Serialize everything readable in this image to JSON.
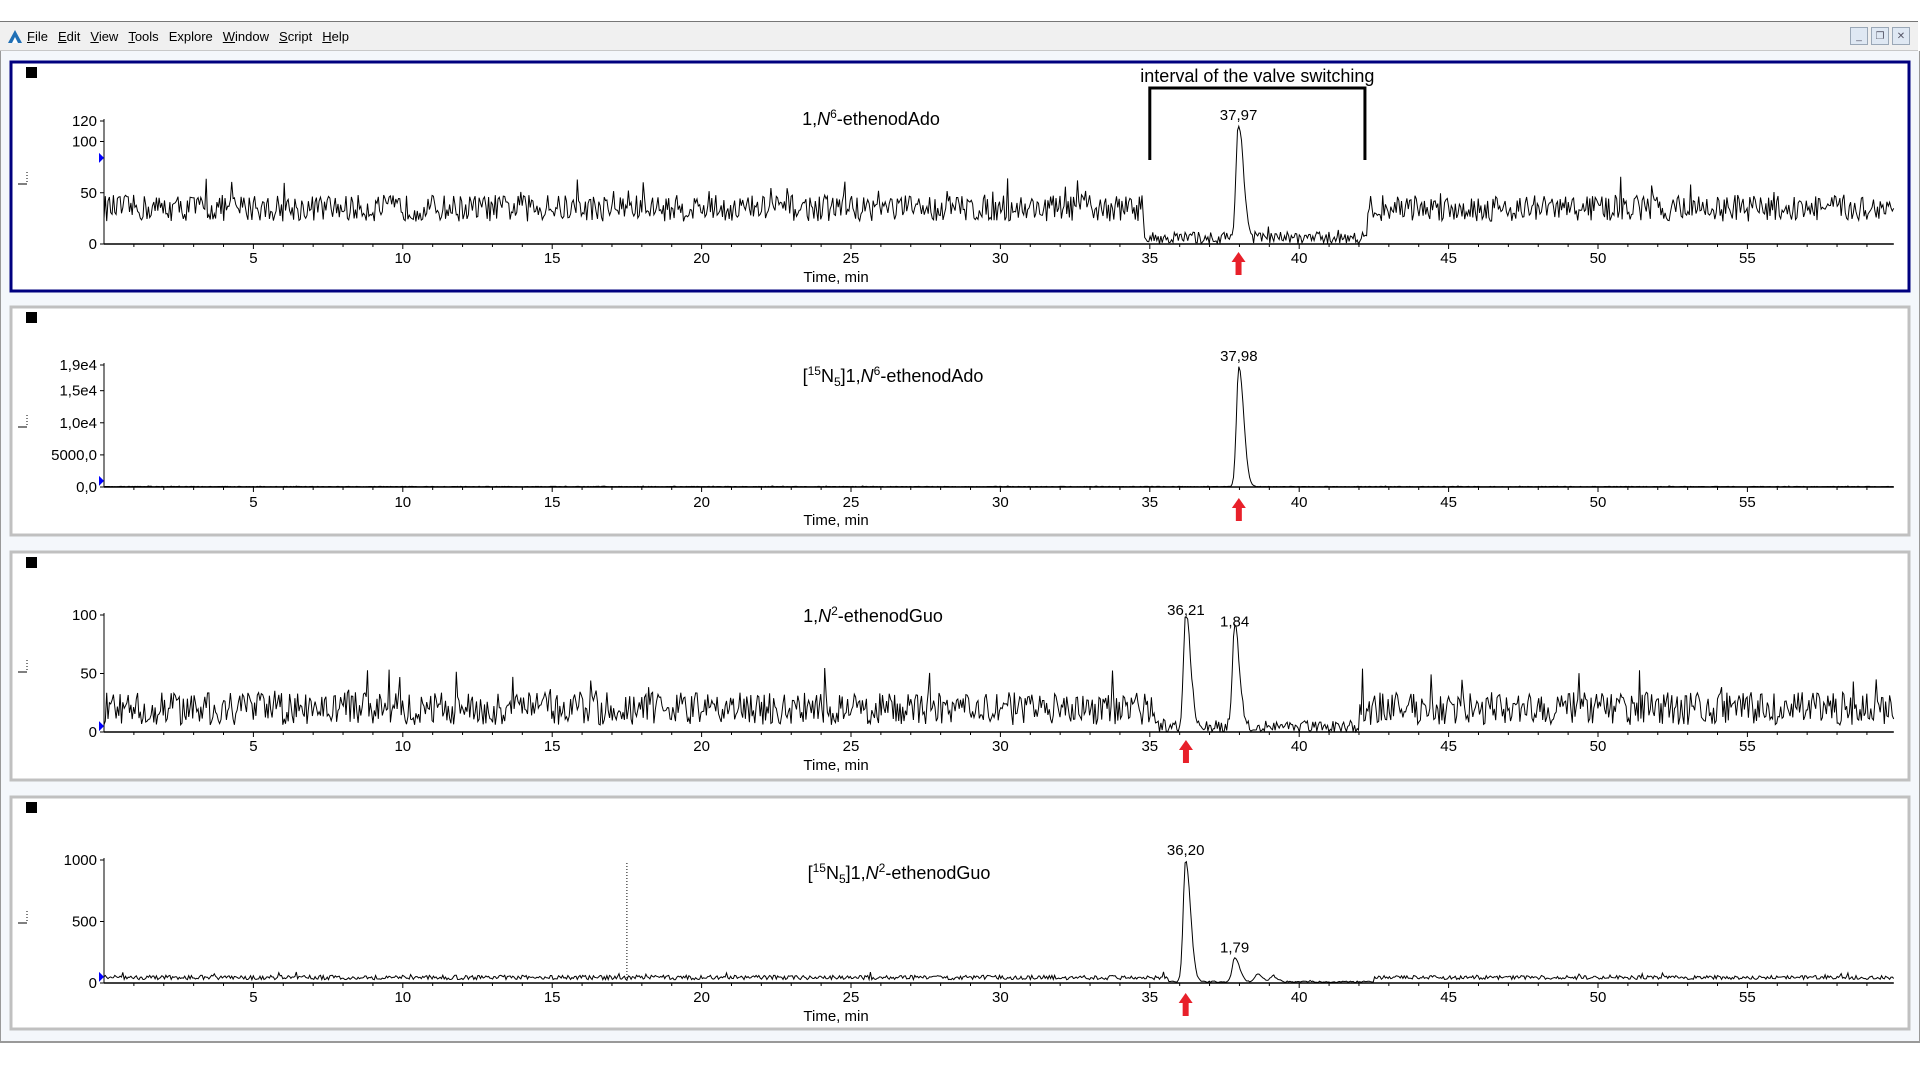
{
  "menu": {
    "items": [
      {
        "label": "File",
        "ul": "F"
      },
      {
        "label": "Edit",
        "ul": "E"
      },
      {
        "label": "View",
        "ul": "V"
      },
      {
        "label": "Tools",
        "ul": "T"
      },
      {
        "label": "Explore",
        "ul": ""
      },
      {
        "label": "Window",
        "ul": "W"
      },
      {
        "label": "Script",
        "ul": "S"
      },
      {
        "label": "Help",
        "ul": "H"
      }
    ],
    "window_buttons": [
      "minimize",
      "restore",
      "close"
    ]
  },
  "colors": {
    "trace": "#000000",
    "selected_border": "#00007f",
    "panel_border": "#c0c0c0",
    "arrow": "#e8202a",
    "marker": "#0000ff"
  },
  "annotation": {
    "text": "interval of the valve switching",
    "from": 35.0,
    "to": 42.2
  },
  "chart_data": [
    {
      "type": "line",
      "title_segments": [
        {
          "t": "1,"
        },
        {
          "t": "N",
          "s": "i"
        },
        {
          "t": "6",
          "s": "sup"
        },
        {
          "t": "-ethenodAdo"
        }
      ],
      "xlabel": "Time, min",
      "xlim": [
        0,
        59.9
      ],
      "xticks": [
        5,
        10,
        15,
        20,
        25,
        30,
        35,
        40,
        45,
        50,
        55
      ],
      "ylim": [
        0,
        120
      ],
      "yticks": [
        {
          "v": 0,
          "label": "0"
        },
        {
          "v": 50,
          "label": "50"
        },
        {
          "v": 100,
          "label": "100"
        },
        {
          "v": 120,
          "label": "120"
        }
      ],
      "baseline": [
        {
          "from": 0,
          "to": 34.8,
          "level": 35,
          "noise": 13
        },
        {
          "from": 34.8,
          "to": 42.3,
          "level": 6,
          "noise": 6
        },
        {
          "from": 42.3,
          "to": 59.9,
          "level": 35,
          "noise": 13
        }
      ],
      "peaks": [
        {
          "rt": 37.97,
          "height": 115,
          "label": "37,97",
          "arrow": true
        }
      ],
      "selected": true
    },
    {
      "type": "line",
      "title_segments": [
        {
          "t": "["
        },
        {
          "t": "15",
          "s": "sup"
        },
        {
          "t": "N"
        },
        {
          "t": "5",
          "s": "sub"
        },
        {
          "t": "]1,"
        },
        {
          "t": "N",
          "s": "i"
        },
        {
          "t": "6",
          "s": "sup"
        },
        {
          "t": "-ethenodAdo"
        }
      ],
      "xlabel": "Time, min",
      "xlim": [
        0,
        59.9
      ],
      "xticks": [
        5,
        10,
        15,
        20,
        25,
        30,
        35,
        40,
        45,
        50,
        55
      ],
      "ylim": [
        0,
        19000
      ],
      "yticks": [
        {
          "v": 0,
          "label": "0,0"
        },
        {
          "v": 5000,
          "label": "5000,0"
        },
        {
          "v": 10000,
          "label": "1,0e4"
        },
        {
          "v": 15000,
          "label": "1,5e4"
        },
        {
          "v": 19000,
          "label": "1,9e4"
        }
      ],
      "baseline": [
        {
          "from": 0,
          "to": 59.9,
          "level": 60,
          "noise": 40
        }
      ],
      "peaks": [
        {
          "rt": 37.98,
          "height": 18700,
          "label": "37,98",
          "arrow": true
        }
      ],
      "selected": false
    },
    {
      "type": "line",
      "title_segments": [
        {
          "t": "1,"
        },
        {
          "t": "N",
          "s": "i"
        },
        {
          "t": "2",
          "s": "sup"
        },
        {
          "t": "-ethenodGuo"
        }
      ],
      "xlabel": "Time, min",
      "xlim": [
        0,
        59.9
      ],
      "xticks": [
        5,
        10,
        15,
        20,
        25,
        30,
        35,
        40,
        45,
        50,
        55
      ],
      "ylim": [
        0,
        100
      ],
      "yticks": [
        {
          "v": 0,
          "label": "0"
        },
        {
          "v": 50,
          "label": "50"
        },
        {
          "v": 100,
          "label": "100"
        }
      ],
      "baseline": [
        {
          "from": 0,
          "to": 35.2,
          "level": 20,
          "noise": 14
        },
        {
          "from": 35.2,
          "to": 42.0,
          "level": 5,
          "noise": 5
        },
        {
          "from": 42.0,
          "to": 59.9,
          "level": 20,
          "noise": 14
        }
      ],
      "peaks": [
        {
          "rt": 36.21,
          "height": 95,
          "label": "36,21",
          "arrow": true
        },
        {
          "rt": 37.84,
          "height": 85,
          "label": "1,84",
          "arrow": false
        }
      ],
      "selected": false
    },
    {
      "type": "line",
      "title_segments": [
        {
          "t": "["
        },
        {
          "t": "15",
          "s": "sup"
        },
        {
          "t": "N"
        },
        {
          "t": "5",
          "s": "sub"
        },
        {
          "t": "]1,"
        },
        {
          "t": "N",
          "s": "i"
        },
        {
          "t": "2",
          "s": "sup"
        },
        {
          "t": "-ethenodGuo"
        }
      ],
      "xlabel": "Time, min",
      "xlim": [
        0,
        59.9
      ],
      "xticks": [
        5,
        10,
        15,
        20,
        25,
        30,
        35,
        40,
        45,
        50,
        55
      ],
      "ylim": [
        0,
        1000
      ],
      "yticks": [
        {
          "v": 0,
          "label": "0"
        },
        {
          "v": 500,
          "label": "500"
        },
        {
          "v": 1000,
          "label": "1000"
        }
      ],
      "baseline": [
        {
          "from": 0,
          "to": 35.6,
          "level": 45,
          "noise": 18
        },
        {
          "from": 35.6,
          "to": 42.5,
          "level": 10,
          "noise": 6
        },
        {
          "from": 42.5,
          "to": 59.9,
          "level": 45,
          "noise": 16
        }
      ],
      "peaks": [
        {
          "rt": 36.2,
          "height": 990,
          "label": "36,20",
          "arrow": true
        },
        {
          "rt": 37.84,
          "height": 200,
          "label": "1,79",
          "arrow": false
        },
        {
          "rt": 38.6,
          "height": 60,
          "label": "",
          "arrow": false
        },
        {
          "rt": 39.1,
          "height": 45,
          "label": "",
          "arrow": false
        }
      ],
      "cursor_line": 17.5,
      "selected": false
    }
  ]
}
